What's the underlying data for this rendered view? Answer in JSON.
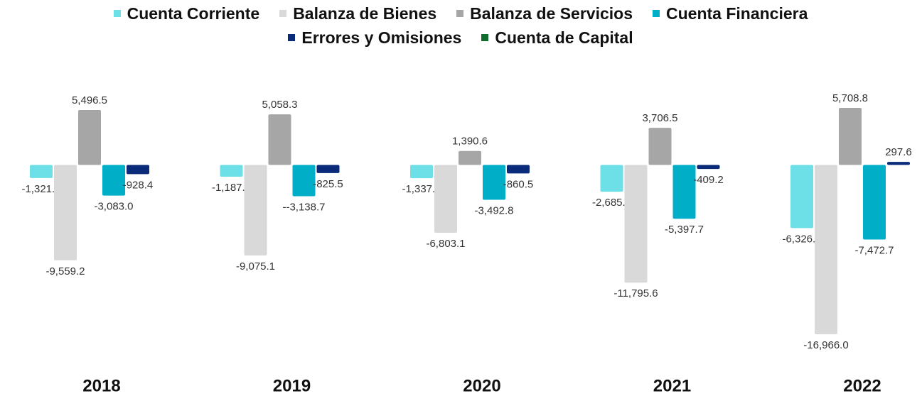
{
  "chart_data": {
    "type": "bar",
    "categories": [
      "2018",
      "2019",
      "2020",
      "2021",
      "2022"
    ],
    "series": [
      {
        "name": "Cuenta Corriente",
        "color": "#6ce0e6",
        "values": [
          -1321.5,
          -1187.9,
          -1337.3,
          -2685.3,
          -6326.8
        ],
        "value_labels": [
          "-1,321.5",
          "-1,187.9",
          "-1,337.3",
          "-2,685.3",
          "-6,326.8"
        ]
      },
      {
        "name": "Balanza de Bienes",
        "color": "#d9d9d9",
        "values": [
          -9559.2,
          -9075.1,
          -6803.1,
          -11795.6,
          -16966.0
        ],
        "value_labels": [
          "-9,559.2",
          "-9,075.1",
          "-6,803.1",
          "-11,795.6",
          "-16,966.0"
        ]
      },
      {
        "name": "Balanza de Servicios",
        "color": "#a6a6a6",
        "values": [
          5496.5,
          5058.3,
          1390.6,
          3706.5,
          5708.8
        ],
        "value_labels": [
          "5,496.5",
          "5,058.3",
          "1,390.6",
          "3,706.5",
          "5,708.8"
        ]
      },
      {
        "name": "Cuenta Financiera",
        "color": "#00aec7",
        "values": [
          -3083.0,
          -3138.7,
          -3492.8,
          -5397.7,
          -7472.7
        ],
        "value_labels": [
          "-3,083.0",
          "--3,138.7",
          "-3,492.8",
          "-5,397.7",
          "-7,472.7"
        ]
      },
      {
        "name": "Errores y Omisiones",
        "color": "#0a2a7a",
        "values": [
          -928.4,
          -825.5,
          -860.5,
          -409.2,
          297.6
        ],
        "value_labels": [
          "-928.4",
          "-825.5",
          "-860.5",
          "-409.2",
          "297.6"
        ]
      },
      {
        "name": "Cuenta de Capital",
        "color": "#0f6e2e",
        "values": [
          0,
          0,
          0,
          0,
          0
        ]
      }
    ]
  }
}
